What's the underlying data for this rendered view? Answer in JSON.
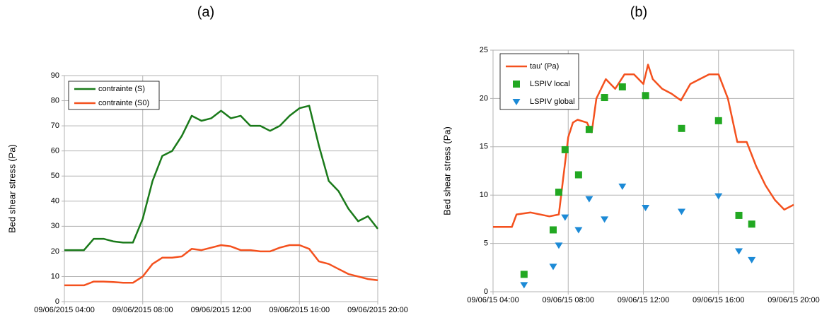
{
  "chart_data": [
    {
      "type": "line",
      "title": "(a)",
      "y_label": "Bed shear stress (Pa)",
      "x": [
        "09/06/2015 04:00",
        "09/06/2015 05:00",
        "09/06/2015 05:30",
        "09/06/2015 06:00",
        "09/06/2015 06:30",
        "09/06/2015 07:00",
        "09/06/2015 07:30",
        "09/06/2015 08:00",
        "09/06/2015 08:30",
        "09/06/2015 09:00",
        "09/06/2015 09:30",
        "09/06/2015 10:00",
        "09/06/2015 10:30",
        "09/06/2015 11:00",
        "09/06/2015 11:30",
        "09/06/2015 12:00",
        "09/06/2015 12:30",
        "09/06/2015 13:00",
        "09/06/2015 13:30",
        "09/06/2015 14:00",
        "09/06/2015 14:30",
        "09/06/2015 15:00",
        "09/06/2015 15:30",
        "09/06/2015 16:00",
        "09/06/2015 16:30",
        "09/06/2015 17:00",
        "09/06/2015 17:30",
        "09/06/2015 18:00",
        "09/06/2015 18:30",
        "09/06/2015 19:00",
        "09/06/2015 19:30",
        "09/06/2015 20:00"
      ],
      "series": [
        {
          "name": "contrainte (S)",
          "color": "#1a7a1a",
          "values": [
            20.5,
            20.5,
            25,
            25,
            24,
            23.5,
            23.5,
            33,
            48,
            58,
            60,
            66,
            74,
            72,
            73,
            76,
            73,
            74,
            70,
            70,
            68,
            70,
            74,
            77,
            78,
            62,
            48,
            44,
            37,
            32,
            34,
            29
          ]
        },
        {
          "name": "contrainte (S0)",
          "color": "#f4511e",
          "values": [
            6.5,
            6.5,
            8,
            8,
            7.8,
            7.5,
            7.5,
            10,
            15,
            17.5,
            17.5,
            18,
            21,
            20.5,
            21.5,
            22.5,
            22,
            20.5,
            20.5,
            20,
            20,
            21.5,
            22.5,
            22.5,
            21,
            16,
            15,
            13,
            11,
            10,
            9,
            8.5
          ]
        }
      ],
      "xlim": [
        "09/06/2015 04:00",
        "09/06/2015 20:00"
      ],
      "xticks": [
        "09/06/2015 04:00",
        "09/06/2015 08:00",
        "09/06/2015 12:00",
        "09/06/2015 16:00",
        "09/06/2015 20:00"
      ],
      "ylim": [
        0,
        90
      ],
      "yticks": [
        0,
        10,
        20,
        30,
        40,
        50,
        60,
        70,
        80,
        90
      ],
      "grid": true,
      "legend": "top-left"
    },
    {
      "type": "line",
      "title": "(b)",
      "y_label": "Bed shear stress (Pa)",
      "series": [
        {
          "name": "tau' (Pa)",
          "type": "line",
          "color": "#f4511e",
          "x": [
            "09/06/15 04:00",
            "09/06/15 05:00",
            "09/06/15 05:15",
            "09/06/15 06:00",
            "09/06/15 07:00",
            "09/06/15 07:30",
            "09/06/15 07:45",
            "09/06/15 08:00",
            "09/06/15 08:15",
            "09/06/15 08:30",
            "09/06/15 09:00",
            "09/06/15 09:15",
            "09/06/15 09:30",
            "09/06/15 10:00",
            "09/06/15 10:30",
            "09/06/15 11:00",
            "09/06/15 11:30",
            "09/06/15 12:00",
            "09/06/15 12:15",
            "09/06/15 12:30",
            "09/06/15 13:00",
            "09/06/15 13:30",
            "09/06/15 14:00",
            "09/06/15 14:30",
            "09/06/15 15:00",
            "09/06/15 15:30",
            "09/06/15 16:00",
            "09/06/15 16:30",
            "09/06/15 17:00",
            "09/06/15 17:30",
            "09/06/15 18:00",
            "09/06/15 18:30",
            "09/06/15 19:00",
            "09/06/15 19:30",
            "09/06/15 20:00"
          ],
          "values": [
            6.7,
            6.7,
            8,
            8.2,
            7.8,
            8,
            12,
            16,
            17.5,
            17.8,
            17.5,
            16.5,
            20,
            22,
            21,
            22.5,
            22.5,
            21.5,
            23.5,
            22,
            21,
            20.5,
            19.8,
            21.5,
            22,
            22.5,
            22.5,
            20,
            15.5,
            15.5,
            13,
            11,
            9.5,
            8.5,
            9
          ]
        },
        {
          "name": "LSPIV local",
          "type": "scatter",
          "marker": "square",
          "color": "#22a822",
          "x": [
            "09/06/15 05:39",
            "09/06/15 07:12",
            "09/06/15 07:30",
            "09/06/15 07:50",
            "09/06/15 08:33",
            "09/06/15 09:07",
            "09/06/15 09:56",
            "09/06/15 10:53",
            "09/06/15 12:07",
            "09/06/15 14:02",
            "09/06/15 16:00",
            "09/06/15 17:05",
            "09/06/15 17:46"
          ],
          "values": [
            1.8,
            6.4,
            10.3,
            14.7,
            12.1,
            16.8,
            20.1,
            21.2,
            20.3,
            16.9,
            17.7,
            7.9,
            7.0
          ]
        },
        {
          "name": "LSPIV global",
          "type": "scatter",
          "marker": "triangle",
          "color": "#1c8ad6",
          "x": [
            "09/06/15 05:39",
            "09/06/15 07:12",
            "09/06/15 07:30",
            "09/06/15 07:50",
            "09/06/15 08:33",
            "09/06/15 09:07",
            "09/06/15 09:56",
            "09/06/15 10:53",
            "09/06/15 12:07",
            "09/06/15 14:02",
            "09/06/15 16:00",
            "09/06/15 17:05",
            "09/06/15 17:46"
          ],
          "values": [
            0.7,
            2.6,
            4.8,
            7.7,
            6.4,
            9.6,
            7.5,
            10.9,
            8.7,
            8.3,
            9.9,
            4.2,
            3.3
          ]
        }
      ],
      "xlim": [
        "09/06/15 04:00",
        "09/06/15 20:00"
      ],
      "xticks": [
        "09/06/15 04:00",
        "09/06/15 08:00",
        "09/06/15 12:00",
        "09/06/15 16:00",
        "09/06/15 20:00"
      ],
      "ylim": [
        0,
        25
      ],
      "yticks": [
        0,
        5,
        10,
        15,
        20,
        25
      ],
      "grid": true,
      "legend": "top-left"
    }
  ]
}
